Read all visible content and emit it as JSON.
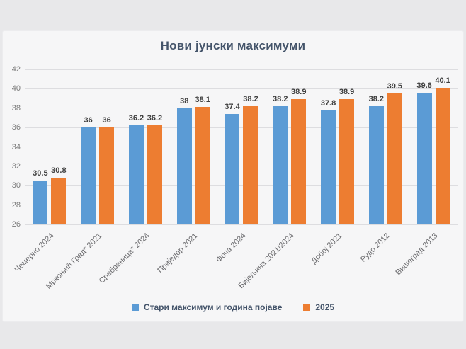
{
  "title": "Нови јунски максимуми",
  "colors": {
    "series_blue": "#5B9BD5",
    "series_orange": "#ED7D31",
    "title_text": "#44546A",
    "axis_text": "#6b6b6e",
    "data_label_text": "#3f3f3f",
    "gridline": "#dddde0",
    "panel_background": "#f6f6f7",
    "outer_background": "#e8e8ea"
  },
  "legend": {
    "items": [
      {
        "label": "Стари максимум и година појаве",
        "color": "#5B9BD5"
      },
      {
        "label": "2025",
        "color": "#ED7D31"
      }
    ]
  },
  "chart_data": {
    "type": "bar",
    "title": "Нови јунски максимуми",
    "categories": [
      "Чемерно 2024",
      "Мркоњић Град* 2021",
      "Сребреница* 2024",
      "Приједор 2021",
      "Фоча 2024",
      "Бијељина 2021/2024",
      "Добој 2021",
      "Рудо 2012",
      "Вишеград 2013"
    ],
    "series": [
      {
        "name": "Стари максимум и година појаве",
        "color": "#5B9BD5",
        "values": [
          30.5,
          36,
          36.2,
          38,
          37.4,
          38.2,
          37.8,
          38.2,
          39.6
        ]
      },
      {
        "name": "2025",
        "color": "#ED7D31",
        "values": [
          30.8,
          36,
          36.2,
          38.1,
          38.2,
          38.9,
          38.9,
          39.5,
          40.1
        ]
      }
    ],
    "xlabel": "",
    "ylabel": "",
    "ylim": [
      26,
      42
    ],
    "ytick_step": 2,
    "grid": true,
    "legend_position": "bottom",
    "data_labels": true
  }
}
